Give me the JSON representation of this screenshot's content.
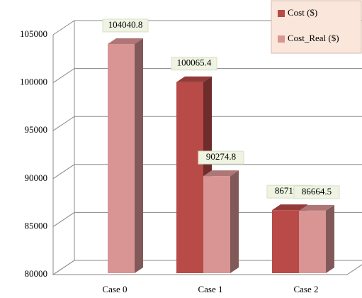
{
  "chart_data": {
    "type": "bar3d",
    "categories": [
      "Case 0",
      "Case 1",
      "Case 2"
    ],
    "series": [
      {
        "name": "Cost ($)",
        "color": "#b84a47",
        "values": [
          null,
          100065.4,
          86719.1
        ]
      },
      {
        "name": "Cost_Real ($)",
        "color": "#d99594",
        "values": [
          104040.8,
          90274.8,
          86664.5
        ]
      }
    ],
    "ylim": [
      80000,
      105000
    ],
    "yticks": [
      80000,
      85000,
      90000,
      95000,
      100000,
      105000
    ],
    "grid": true,
    "legend": "top-right"
  }
}
